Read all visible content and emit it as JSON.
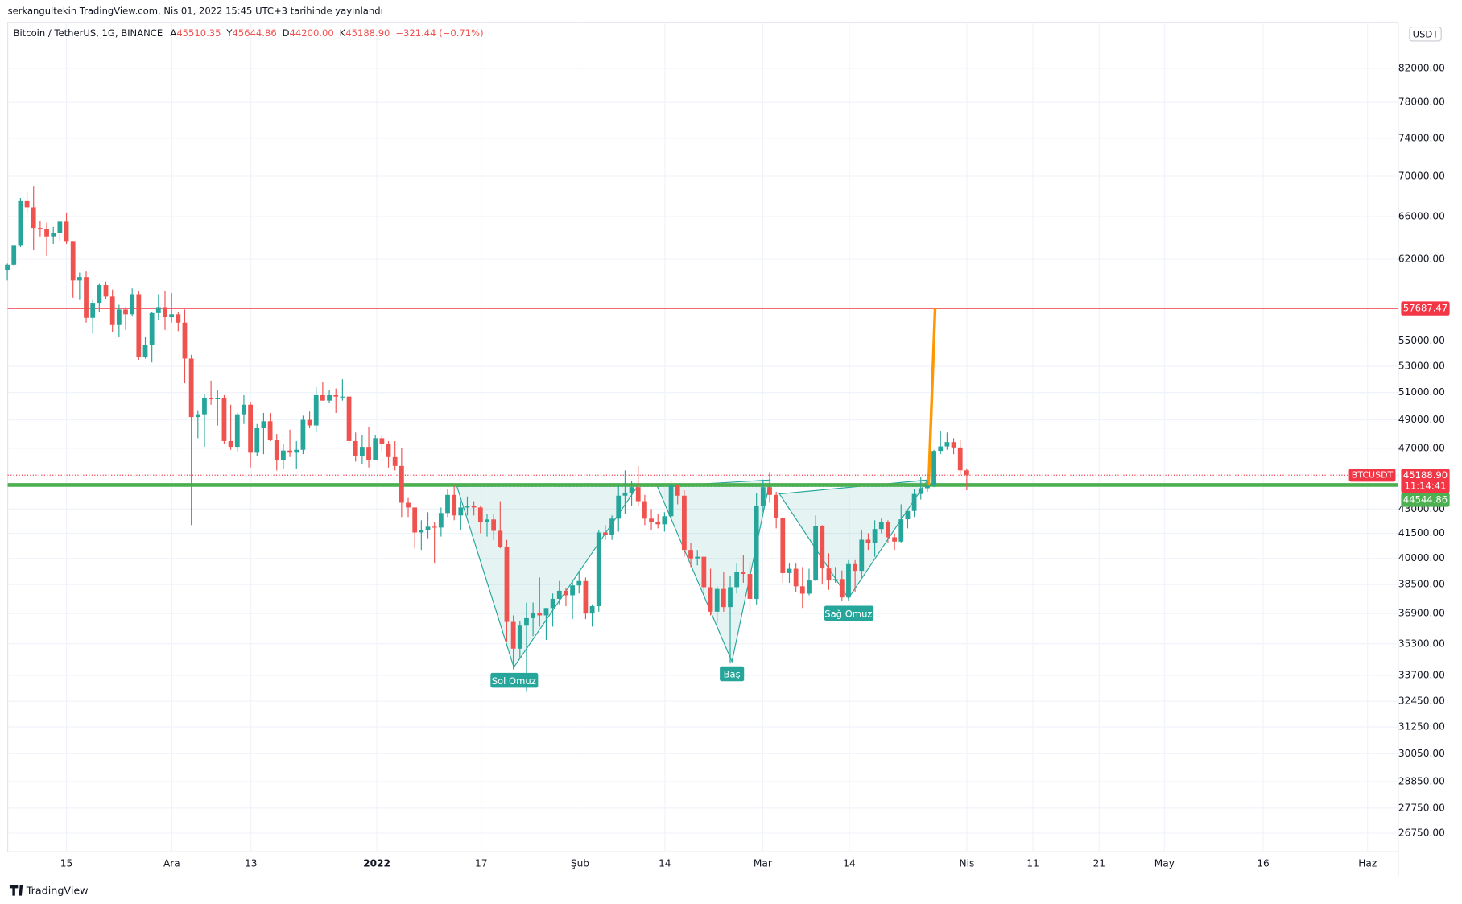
{
  "header": {
    "publisher": "serkangultekin TradingView.com, Nis 01, 2022 15:45 UTC+3 tarihinde yayınlandı",
    "brand": "TradingView"
  },
  "chart_data": {
    "type": "candlestick",
    "title": "Bitcoin / TetherUS, 1G, BINANCE",
    "ohlc_legend": [
      {
        "key": "A",
        "text": "45510.35"
      },
      {
        "key": "Y",
        "text": "45644.86"
      },
      {
        "key": "D",
        "text": "44200.00"
      },
      {
        "key": "K",
        "text": "45188.90"
      }
    ],
    "change": "−321.44 (−0.71%)",
    "currency": "USDT",
    "up_color": "#26a69a",
    "down_color": "#ef5350",
    "log": true,
    "grid": true,
    "ylim": [
      26030,
      87700
    ],
    "yticks": [
      {
        "value": 82000,
        "label": "82000.00"
      },
      {
        "value": 78000,
        "label": "78000.00"
      },
      {
        "value": 74000,
        "label": "74000.00"
      },
      {
        "value": 70000,
        "label": "70000.00"
      },
      {
        "value": 66000,
        "label": "66000.00"
      },
      {
        "value": 62000,
        "label": "62000.00"
      },
      {
        "value": 55000,
        "label": "55000.00"
      },
      {
        "value": 53000,
        "label": "53000.00"
      },
      {
        "value": 51000,
        "label": "51000.00"
      },
      {
        "value": 49000,
        "label": "49000.00"
      },
      {
        "value": 47000,
        "label": "47000.00"
      },
      {
        "value": 43000,
        "label": "43000.00"
      },
      {
        "value": 41500,
        "label": "41500.00"
      },
      {
        "value": 40000,
        "label": "40000.00"
      },
      {
        "value": 38500,
        "label": "38500.00"
      },
      {
        "value": 36900,
        "label": "36900.00"
      },
      {
        "value": 35300,
        "label": "35300.00"
      },
      {
        "value": 33700,
        "label": "33700.00"
      },
      {
        "value": 32450,
        "label": "32450.00"
      },
      {
        "value": 31250,
        "label": "31250.00"
      },
      {
        "value": 30050,
        "label": "30050.00"
      },
      {
        "value": 28850,
        "label": "28850.00"
      },
      {
        "value": 27750,
        "label": "27750.00"
      },
      {
        "value": 26750,
        "label": "26750.00"
      }
    ],
    "xtick_labels": [
      "15",
      "Ara",
      "13",
      "2022",
      "17",
      "Şub",
      "14",
      "Mar",
      "14",
      "Nis",
      "11",
      "21",
      "May",
      "16",
      "Haz"
    ],
    "open": [
      61000,
      61500,
      63300,
      67500,
      66900,
      64900,
      64800,
      64100,
      64400,
      65500,
      63600,
      60100,
      60400,
      56900,
      58100,
      59700,
      58700,
      56300,
      57600,
      57200,
      58900,
      53700,
      54700,
      57300,
      57800,
      56950,
      57200,
      56500,
      53600,
      49200,
      49400,
      50600,
      50500,
      50600,
      47500,
      47100,
      49400,
      50100,
      46700,
      48400,
      48900,
      47600,
      46200,
      46850,
      46700,
      46900,
      49000,
      48600,
      50800,
      50400,
      50800,
      50700,
      50700,
      47500,
      46500,
      47100,
      46200,
      47700,
      47300,
      46400,
      45800,
      43400,
      43100,
      41550,
      41700,
      41900,
      41850,
      42750,
      43900,
      42600,
      43100,
      43200,
      43100,
      42200,
      42350,
      41650,
      40700,
      36450,
      35050,
      36250,
      36650,
      36950,
      36800,
      37200,
      37700,
      38150,
      37900,
      38450,
      38700,
      36900,
      37300,
      41550,
      41400,
      42400,
      43850,
      44050,
      44400,
      43500,
      42400,
      42200,
      42050,
      42550,
      44550,
      43850,
      40500,
      40000,
      40100,
      38350,
      37000,
      38250,
      37250,
      38350,
      39200,
      39100,
      37700,
      43200,
      44400,
      43900,
      42450,
      39150,
      39400,
      38400,
      37990,
      38730,
      41940,
      39420,
      38730,
      38810,
      37780,
      39670,
      39280,
      41110,
      40920,
      41760,
      42200,
      41260,
      41000,
      42360,
      42880,
      43960,
      44330,
      44500,
      46820,
      47130,
      47430,
      47060,
      45510.35
    ],
    "high": [
      61600,
      63300,
      67800,
      68500,
      69000,
      65600,
      65400,
      65000,
      65600,
      66400,
      63600,
      60800,
      60900,
      58400,
      59800,
      60000,
      59300,
      58000,
      57800,
      59400,
      59200,
      55300,
      57400,
      58900,
      59200,
      59000,
      57400,
      57600,
      53900,
      49700,
      50900,
      51900,
      51200,
      50800,
      50100,
      49500,
      50800,
      50300,
      48700,
      49500,
      49500,
      48000,
      47300,
      48300,
      47500,
      49300,
      49600,
      51400,
      51800,
      51200,
      51300,
      52000,
      50700,
      48100,
      47900,
      48500,
      47900,
      47900,
      47500,
      47500,
      47000,
      43700,
      43100,
      42300,
      42800,
      42200,
      43100,
      44300,
      44500,
      43500,
      43800,
      43500,
      43200,
      42700,
      42700,
      43500,
      41100,
      36800,
      36500,
      37500,
      37500,
      38900,
      37200,
      38000,
      38700,
      38300,
      38700,
      39300,
      38900,
      37400,
      41700,
      42000,
      42600,
      44500,
      45500,
      44800,
      45800,
      43900,
      43000,
      42700,
      42800,
      44800,
      44600,
      44200,
      40900,
      40500,
      40100,
      39400,
      38400,
      39200,
      39000,
      39700,
      40200,
      39800,
      44000,
      44900,
      45400,
      44100,
      42500,
      39700,
      39700,
      39500,
      39400,
      42600,
      42000,
      40300,
      39500,
      39300,
      39900,
      39900,
      41700,
      41500,
      42300,
      42400,
      42300,
      41500,
      43300,
      43000,
      44300,
      45100,
      44800,
      46900,
      48200,
      48100,
      47700,
      47600,
      45644.86
    ],
    "low": [
      60100,
      61400,
      63100,
      66300,
      62800,
      64100,
      62300,
      63400,
      63600,
      63400,
      58600,
      58400,
      56500,
      55600,
      57400,
      58500,
      55700,
      55300,
      55900,
      57000,
      53500,
      53600,
      53300,
      56700,
      55900,
      56500,
      55800,
      51700,
      42000,
      47700,
      47100,
      50100,
      48600,
      47300,
      46900,
      46800,
      48700,
      45700,
      46500,
      46600,
      47500,
      45500,
      45600,
      46400,
      45600,
      46600,
      48400,
      48100,
      50400,
      50200,
      49500,
      50400,
      47300,
      46100,
      45900,
      45700,
      46200,
      46700,
      45700,
      45500,
      42500,
      42500,
      40600,
      40500,
      41200,
      39700,
      41300,
      42500,
      42300,
      41700,
      42600,
      42600,
      41500,
      41300,
      41100,
      40600,
      35400,
      34000,
      34600,
      32900,
      35700,
      36200,
      35500,
      36200,
      37400,
      37300,
      36600,
      38000,
      36600,
      36200,
      37000,
      41100,
      41100,
      41600,
      42700,
      43200,
      43200,
      42000,
      41700,
      41800,
      41600,
      42400,
      43300,
      40100,
      39500,
      39600,
      38000,
      36800,
      36400,
      37000,
      34300,
      38000,
      38600,
      37000,
      37400,
      42800,
      43400,
      41800,
      38600,
      38600,
      38100,
      37200,
      37900,
      38700,
      38500,
      38200,
      38600,
      37600,
      37600,
      38100,
      38900,
      40500,
      40100,
      41500,
      40900,
      40500,
      40900,
      41800,
      42500,
      43600,
      44100,
      44400,
      46600,
      46900,
      46600,
      45200,
      44200
    ],
    "close": [
      61500,
      63300,
      67500,
      66900,
      64900,
      64800,
      64100,
      64400,
      65500,
      63600,
      60100,
      60400,
      56900,
      58100,
      59700,
      58700,
      56300,
      57600,
      57200,
      58900,
      53700,
      54700,
      57300,
      57800,
      56950,
      57200,
      56500,
      53600,
      49200,
      49400,
      50600,
      50500,
      50600,
      47500,
      47100,
      49400,
      50100,
      46700,
      48400,
      48900,
      47600,
      46200,
      46850,
      46700,
      46900,
      49000,
      48600,
      50800,
      50400,
      50800,
      50700,
      50700,
      47500,
      46500,
      47100,
      46200,
      47700,
      47300,
      46400,
      45800,
      43400,
      43100,
      41550,
      41700,
      41900,
      41850,
      42750,
      43900,
      42600,
      43100,
      43200,
      43100,
      42200,
      42350,
      41650,
      40700,
      36450,
      35050,
      36250,
      36650,
      36950,
      36800,
      37200,
      37700,
      38150,
      37900,
      38450,
      38700,
      36900,
      37300,
      41550,
      41400,
      42400,
      43850,
      44050,
      44400,
      43500,
      42400,
      42200,
      42050,
      42550,
      44550,
      43850,
      40500,
      40000,
      40100,
      38350,
      37000,
      38250,
      37250,
      38350,
      39200,
      39100,
      37700,
      43200,
      44400,
      43900,
      42450,
      39150,
      39400,
      38400,
      37990,
      38730,
      41940,
      39420,
      38730,
      38810,
      37780,
      39670,
      39280,
      41110,
      40920,
      41760,
      42200,
      41260,
      41000,
      42360,
      42880,
      43960,
      44330,
      44500,
      46820,
      47130,
      47430,
      47060,
      45510,
      45188.9
    ],
    "levels": [
      {
        "value": 57687.47,
        "color": "#f23645",
        "kind": "target"
      },
      {
        "value": 44544.86,
        "color": "#4caf50",
        "kind": "neckline"
      }
    ],
    "last_price": {
      "value": 45188.9,
      "label": "45188.90",
      "symbol": "BTCUSDT",
      "countdown": "11:14:41",
      "color": "#f23645"
    },
    "annotations": [
      "Sol Omuz",
      "Baş",
      "Sağ Omuz"
    ]
  }
}
